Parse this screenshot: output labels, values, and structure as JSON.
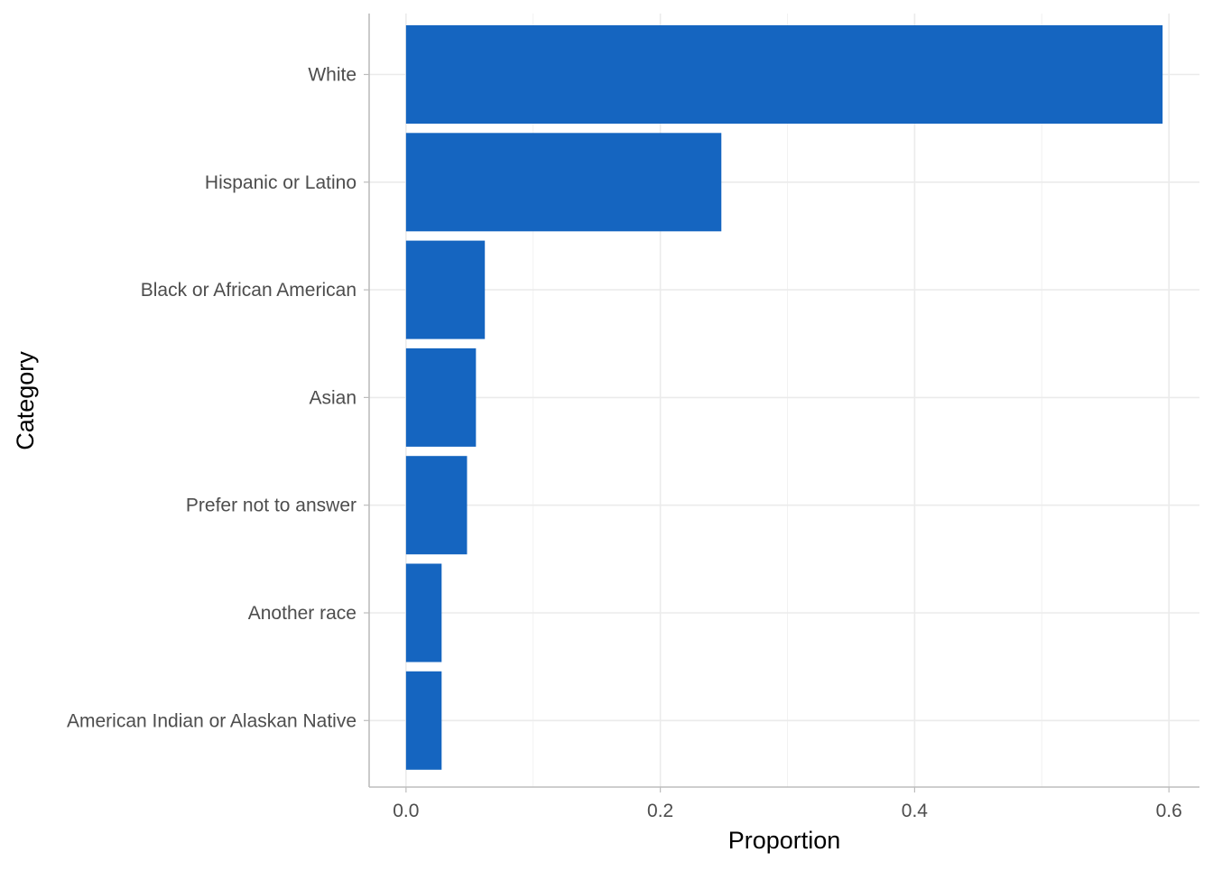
{
  "chart_data": {
    "type": "bar",
    "orientation": "horizontal",
    "title": "",
    "xlabel": "Proportion",
    "ylabel": "Category",
    "categories": [
      "White",
      "Hispanic or Latino",
      "Black or African American",
      "Asian",
      "Prefer not to answer",
      "Another race",
      "American Indian or Alaskan Native"
    ],
    "values": [
      0.595,
      0.248,
      0.062,
      0.055,
      0.048,
      0.028,
      0.028
    ],
    "xlim": [
      -0.029,
      0.624
    ],
    "xticks": [
      0.0,
      0.2,
      0.4,
      0.6
    ],
    "xtick_labels": [
      "0.0",
      "0.2",
      "0.4",
      "0.6"
    ],
    "grid": true,
    "legend": "none",
    "colors": {
      "bar": "#1565c0",
      "grid": "#ebebeb",
      "axis": "#bdbdbd",
      "tick_text": "#4d4d4d",
      "title_text": "#000000"
    }
  }
}
